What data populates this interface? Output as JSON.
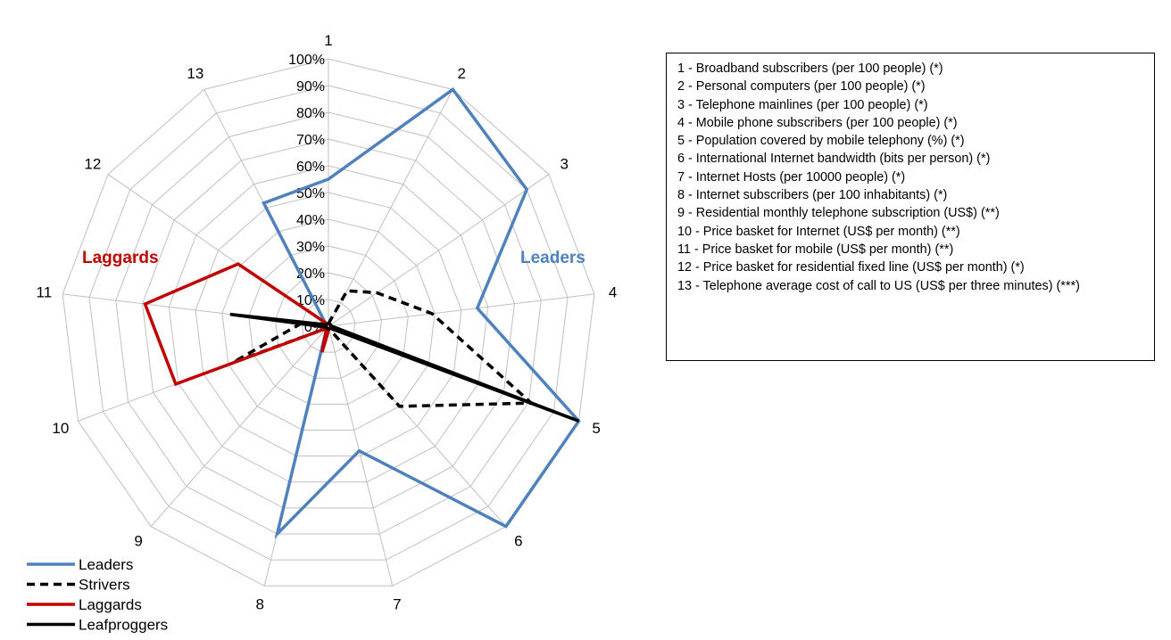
{
  "chart_data": {
    "type": "radar",
    "axes": [
      "1",
      "2",
      "3",
      "4",
      "5",
      "6",
      "7",
      "8",
      "9",
      "10",
      "11",
      "12",
      "13"
    ],
    "tick_labels": [
      "0%",
      "10%",
      "20%",
      "30%",
      "40%",
      "50%",
      "60%",
      "70%",
      "80%",
      "90%",
      "100%"
    ],
    "range": [
      0,
      100
    ],
    "grid": true,
    "legend_position": "bottom-left",
    "series": [
      {
        "name": "Leaders",
        "color": "#4f81bd",
        "dash": "solid",
        "values": [
          55,
          100,
          90,
          56,
          100,
          100,
          48,
          80,
          1,
          1,
          1,
          1,
          52
        ]
      },
      {
        "name": "Strivers",
        "color": "#000000",
        "dash": "dashed",
        "values": [
          1,
          15,
          22,
          39,
          81,
          40,
          1,
          1,
          1,
          38,
          10,
          1,
          1
        ]
      },
      {
        "name": "Laggards",
        "color": "#c00000",
        "dash": "solid",
        "values": [
          1,
          1,
          1,
          1,
          1,
          1,
          1,
          10,
          1,
          61,
          69,
          41,
          1
        ]
      },
      {
        "name": "Leafproggers",
        "color": "#000000",
        "dash": "solid",
        "values": [
          1,
          1,
          1,
          1,
          100,
          1,
          1,
          1,
          1,
          1,
          37,
          1,
          1
        ]
      }
    ],
    "annotations": [
      {
        "text": "Laggards",
        "color": "#c00000"
      },
      {
        "text": "Leaders",
        "color": "#4f81bd"
      }
    ]
  },
  "notes": [
    "1 - Broadband subscribers (per 100 people) (*)",
    "2 - Personal computers (per 100 people) (*)",
    "3 - Telephone mainlines (per 100 people) (*)",
    "4 - Mobile phone subscribers (per 100 people) (*)",
    "5 - Population covered by mobile telephony (%) (*)",
    "6 - International Internet bandwidth (bits per person) (*)",
    "7 - Internet Hosts (per 10000 people) (*)",
    "8 - Internet subscribers (per 100 inhabitants) (*)",
    "9 - Residential monthly telephone subscription (US$) (**)",
    "10 - Price basket for Internet (US$ per month) (**)",
    "11 - Price basket for mobile (US$ per month) (**)",
    "12 - Price basket for residential fixed line (US$ per month) (*)",
    "13 - Telephone average cost of call to US (US$ per three minutes) (***)"
  ]
}
